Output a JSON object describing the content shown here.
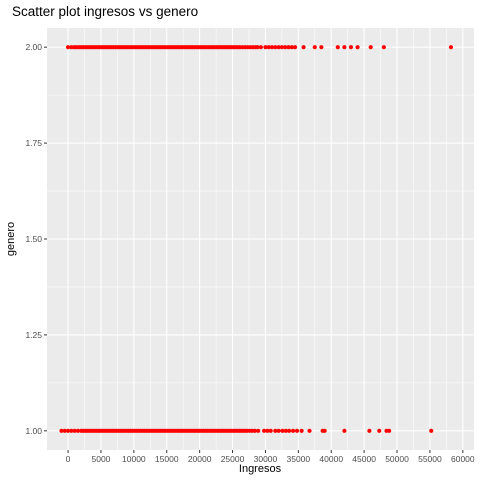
{
  "chart_data": {
    "type": "scatter",
    "title": "Scatter plot ingresos vs genero",
    "xlabel": "Ingresos",
    "ylabel": "genero",
    "xlim": [
      -3200,
      61700
    ],
    "ylim": [
      0.95,
      2.05
    ],
    "x_ticks": [
      0,
      5000,
      10000,
      15000,
      20000,
      25000,
      30000,
      35000,
      40000,
      45000,
      50000,
      55000,
      60000
    ],
    "x_tick_labels": [
      "0",
      "5000",
      "10000",
      "15000",
      "20000",
      "25000",
      "30000",
      "35000",
      "40000",
      "45000",
      "50000",
      "55000",
      "60000"
    ],
    "y_ticks": [
      1.0,
      1.25,
      1.5,
      1.75,
      2.0
    ],
    "y_tick_labels": [
      "1.00",
      "1.25",
      "1.50",
      "1.75",
      "2.00"
    ],
    "grid": true,
    "point_color": "#ff0000",
    "panel_color": "#ebebeb",
    "gridline_color": "#ffffff",
    "series": [
      {
        "points": [
          {
            "x": 0,
            "y": 2
          },
          {
            "x": 500,
            "y": 2
          },
          {
            "x": 900,
            "y": 2
          },
          {
            "x": 1200,
            "y": 2
          },
          {
            "x": 1500,
            "y": 2
          },
          {
            "x": 1800,
            "y": 2
          },
          {
            "x": 2100,
            "y": 2
          },
          {
            "x": 2400,
            "y": 2
          },
          {
            "x": 2700,
            "y": 2
          },
          {
            "x": 3000,
            "y": 2
          },
          {
            "x": 3300,
            "y": 2
          },
          {
            "x": 3600,
            "y": 2
          },
          {
            "x": 3900,
            "y": 2
          },
          {
            "x": 4200,
            "y": 2
          },
          {
            "x": 4500,
            "y": 2
          },
          {
            "x": 4800,
            "y": 2
          },
          {
            "x": 5100,
            "y": 2
          },
          {
            "x": 5400,
            "y": 2
          },
          {
            "x": 5700,
            "y": 2
          },
          {
            "x": 6000,
            "y": 2
          },
          {
            "x": 6300,
            "y": 2
          },
          {
            "x": 6600,
            "y": 2
          },
          {
            "x": 6900,
            "y": 2
          },
          {
            "x": 7200,
            "y": 2
          },
          {
            "x": 7500,
            "y": 2
          },
          {
            "x": 7800,
            "y": 2
          },
          {
            "x": 8100,
            "y": 2
          },
          {
            "x": 8400,
            "y": 2
          },
          {
            "x": 8700,
            "y": 2
          },
          {
            "x": 9000,
            "y": 2
          },
          {
            "x": 9300,
            "y": 2
          },
          {
            "x": 9600,
            "y": 2
          },
          {
            "x": 9900,
            "y": 2
          },
          {
            "x": 10200,
            "y": 2
          },
          {
            "x": 10500,
            "y": 2
          },
          {
            "x": 10800,
            "y": 2
          },
          {
            "x": 11100,
            "y": 2
          },
          {
            "x": 11400,
            "y": 2
          },
          {
            "x": 11700,
            "y": 2
          },
          {
            "x": 12000,
            "y": 2
          },
          {
            "x": 12300,
            "y": 2
          },
          {
            "x": 12600,
            "y": 2
          },
          {
            "x": 12900,
            "y": 2
          },
          {
            "x": 13200,
            "y": 2
          },
          {
            "x": 13500,
            "y": 2
          },
          {
            "x": 13800,
            "y": 2
          },
          {
            "x": 14100,
            "y": 2
          },
          {
            "x": 14400,
            "y": 2
          },
          {
            "x": 14700,
            "y": 2
          },
          {
            "x": 15000,
            "y": 2
          },
          {
            "x": 15300,
            "y": 2
          },
          {
            "x": 15600,
            "y": 2
          },
          {
            "x": 15900,
            "y": 2
          },
          {
            "x": 16200,
            "y": 2
          },
          {
            "x": 16500,
            "y": 2
          },
          {
            "x": 16800,
            "y": 2
          },
          {
            "x": 17100,
            "y": 2
          },
          {
            "x": 17400,
            "y": 2
          },
          {
            "x": 17700,
            "y": 2
          },
          {
            "x": 18000,
            "y": 2
          },
          {
            "x": 18300,
            "y": 2
          },
          {
            "x": 18600,
            "y": 2
          },
          {
            "x": 18900,
            "y": 2
          },
          {
            "x": 19200,
            "y": 2
          },
          {
            "x": 19500,
            "y": 2
          },
          {
            "x": 19800,
            "y": 2
          },
          {
            "x": 20100,
            "y": 2
          },
          {
            "x": 20400,
            "y": 2
          },
          {
            "x": 20700,
            "y": 2
          },
          {
            "x": 21000,
            "y": 2
          },
          {
            "x": 21300,
            "y": 2
          },
          {
            "x": 21600,
            "y": 2
          },
          {
            "x": 21900,
            "y": 2
          },
          {
            "x": 22200,
            "y": 2
          },
          {
            "x": 22500,
            "y": 2
          },
          {
            "x": 22800,
            "y": 2
          },
          {
            "x": 23100,
            "y": 2
          },
          {
            "x": 23400,
            "y": 2
          },
          {
            "x": 23700,
            "y": 2
          },
          {
            "x": 24000,
            "y": 2
          },
          {
            "x": 24300,
            "y": 2
          },
          {
            "x": 24600,
            "y": 2
          },
          {
            "x": 24900,
            "y": 2
          },
          {
            "x": 25200,
            "y": 2
          },
          {
            "x": 25500,
            "y": 2
          },
          {
            "x": 25800,
            "y": 2
          },
          {
            "x": 26100,
            "y": 2
          },
          {
            "x": 26500,
            "y": 2
          },
          {
            "x": 26900,
            "y": 2
          },
          {
            "x": 27300,
            "y": 2
          },
          {
            "x": 27700,
            "y": 2
          },
          {
            "x": 28100,
            "y": 2
          },
          {
            "x": 28500,
            "y": 2
          },
          {
            "x": 28800,
            "y": 2
          },
          {
            "x": 29300,
            "y": 2
          },
          {
            "x": 30000,
            "y": 2
          },
          {
            "x": 30500,
            "y": 2
          },
          {
            "x": 31000,
            "y": 2
          },
          {
            "x": 31500,
            "y": 2
          },
          {
            "x": 32000,
            "y": 2
          },
          {
            "x": 32500,
            "y": 2
          },
          {
            "x": 33000,
            "y": 2
          },
          {
            "x": 33500,
            "y": 2
          },
          {
            "x": 34000,
            "y": 2
          },
          {
            "x": 34500,
            "y": 2
          },
          {
            "x": 35800,
            "y": 2
          },
          {
            "x": 37500,
            "y": 2
          },
          {
            "x": 38500,
            "y": 2
          },
          {
            "x": 41000,
            "y": 2
          },
          {
            "x": 42000,
            "y": 2
          },
          {
            "x": 43000,
            "y": 2
          },
          {
            "x": 44000,
            "y": 2
          },
          {
            "x": 46000,
            "y": 2
          },
          {
            "x": 48000,
            "y": 2
          },
          {
            "x": 58200,
            "y": 2
          },
          {
            "x": -1000,
            "y": 1
          },
          {
            "x": -500,
            "y": 1
          },
          {
            "x": 0,
            "y": 1
          },
          {
            "x": 500,
            "y": 1
          },
          {
            "x": 1000,
            "y": 1
          },
          {
            "x": 1500,
            "y": 1
          },
          {
            "x": 2000,
            "y": 1
          },
          {
            "x": 2300,
            "y": 1
          },
          {
            "x": 2600,
            "y": 1
          },
          {
            "x": 2900,
            "y": 1
          },
          {
            "x": 3200,
            "y": 1
          },
          {
            "x": 3500,
            "y": 1
          },
          {
            "x": 3800,
            "y": 1
          },
          {
            "x": 4100,
            "y": 1
          },
          {
            "x": 4400,
            "y": 1
          },
          {
            "x": 4700,
            "y": 1
          },
          {
            "x": 5000,
            "y": 1
          },
          {
            "x": 5300,
            "y": 1
          },
          {
            "x": 5600,
            "y": 1
          },
          {
            "x": 5900,
            "y": 1
          },
          {
            "x": 6200,
            "y": 1
          },
          {
            "x": 6500,
            "y": 1
          },
          {
            "x": 6800,
            "y": 1
          },
          {
            "x": 7100,
            "y": 1
          },
          {
            "x": 7400,
            "y": 1
          },
          {
            "x": 7700,
            "y": 1
          },
          {
            "x": 8000,
            "y": 1
          },
          {
            "x": 8300,
            "y": 1
          },
          {
            "x": 8600,
            "y": 1
          },
          {
            "x": 8900,
            "y": 1
          },
          {
            "x": 9200,
            "y": 1
          },
          {
            "x": 9500,
            "y": 1
          },
          {
            "x": 9800,
            "y": 1
          },
          {
            "x": 10100,
            "y": 1
          },
          {
            "x": 10400,
            "y": 1
          },
          {
            "x": 10700,
            "y": 1
          },
          {
            "x": 11000,
            "y": 1
          },
          {
            "x": 11300,
            "y": 1
          },
          {
            "x": 11600,
            "y": 1
          },
          {
            "x": 11900,
            "y": 1
          },
          {
            "x": 12200,
            "y": 1
          },
          {
            "x": 12500,
            "y": 1
          },
          {
            "x": 12800,
            "y": 1
          },
          {
            "x": 13100,
            "y": 1
          },
          {
            "x": 13400,
            "y": 1
          },
          {
            "x": 13700,
            "y": 1
          },
          {
            "x": 14000,
            "y": 1
          },
          {
            "x": 14300,
            "y": 1
          },
          {
            "x": 14600,
            "y": 1
          },
          {
            "x": 14900,
            "y": 1
          },
          {
            "x": 15200,
            "y": 1
          },
          {
            "x": 15500,
            "y": 1
          },
          {
            "x": 15800,
            "y": 1
          },
          {
            "x": 16100,
            "y": 1
          },
          {
            "x": 16400,
            "y": 1
          },
          {
            "x": 16700,
            "y": 1
          },
          {
            "x": 17000,
            "y": 1
          },
          {
            "x": 17300,
            "y": 1
          },
          {
            "x": 17600,
            "y": 1
          },
          {
            "x": 17900,
            "y": 1
          },
          {
            "x": 18200,
            "y": 1
          },
          {
            "x": 18500,
            "y": 1
          },
          {
            "x": 18800,
            "y": 1
          },
          {
            "x": 19100,
            "y": 1
          },
          {
            "x": 19400,
            "y": 1
          },
          {
            "x": 19700,
            "y": 1
          },
          {
            "x": 20000,
            "y": 1
          },
          {
            "x": 20300,
            "y": 1
          },
          {
            "x": 20600,
            "y": 1
          },
          {
            "x": 20900,
            "y": 1
          },
          {
            "x": 21200,
            "y": 1
          },
          {
            "x": 21500,
            "y": 1
          },
          {
            "x": 21800,
            "y": 1
          },
          {
            "x": 22100,
            "y": 1
          },
          {
            "x": 22400,
            "y": 1
          },
          {
            "x": 22700,
            "y": 1
          },
          {
            "x": 23000,
            "y": 1
          },
          {
            "x": 23300,
            "y": 1
          },
          {
            "x": 23600,
            "y": 1
          },
          {
            "x": 23900,
            "y": 1
          },
          {
            "x": 24200,
            "y": 1
          },
          {
            "x": 24500,
            "y": 1
          },
          {
            "x": 24800,
            "y": 1
          },
          {
            "x": 25100,
            "y": 1
          },
          {
            "x": 25400,
            "y": 1
          },
          {
            "x": 25700,
            "y": 1
          },
          {
            "x": 26000,
            "y": 1
          },
          {
            "x": 26300,
            "y": 1
          },
          {
            "x": 26600,
            "y": 1
          },
          {
            "x": 26900,
            "y": 1
          },
          {
            "x": 27200,
            "y": 1
          },
          {
            "x": 27600,
            "y": 1
          },
          {
            "x": 28000,
            "y": 1
          },
          {
            "x": 28400,
            "y": 1
          },
          {
            "x": 28900,
            "y": 1
          },
          {
            "x": 29800,
            "y": 1
          },
          {
            "x": 30300,
            "y": 1
          },
          {
            "x": 30800,
            "y": 1
          },
          {
            "x": 31500,
            "y": 1
          },
          {
            "x": 32000,
            "y": 1
          },
          {
            "x": 32600,
            "y": 1
          },
          {
            "x": 33100,
            "y": 1
          },
          {
            "x": 33600,
            "y": 1
          },
          {
            "x": 34200,
            "y": 1
          },
          {
            "x": 34800,
            "y": 1
          },
          {
            "x": 35500,
            "y": 1
          },
          {
            "x": 36700,
            "y": 1
          },
          {
            "x": 38700,
            "y": 1
          },
          {
            "x": 39000,
            "y": 1
          },
          {
            "x": 42000,
            "y": 1
          },
          {
            "x": 45800,
            "y": 1
          },
          {
            "x": 47300,
            "y": 1
          },
          {
            "x": 48400,
            "y": 1
          },
          {
            "x": 48800,
            "y": 1
          },
          {
            "x": 55200,
            "y": 1
          }
        ]
      }
    ]
  }
}
